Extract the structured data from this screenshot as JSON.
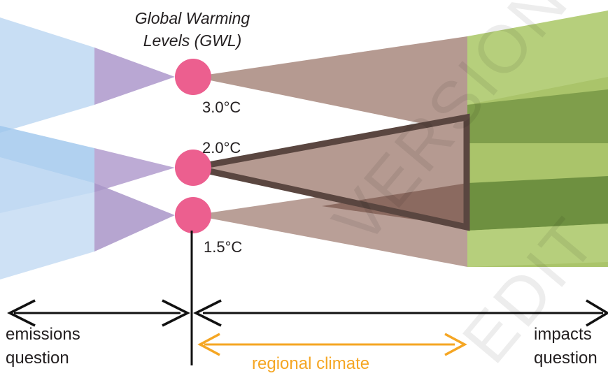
{
  "title_line1": "Global Warming",
  "title_line2": "Levels (GWL)",
  "levels": [
    {
      "label": "3.0°C"
    },
    {
      "label": "2.0°C"
    },
    {
      "label": "1.5°C"
    }
  ],
  "bottom": {
    "left_line1": "emissions",
    "left_line2": "question",
    "middle": "regional climate",
    "right_line1": "impacts",
    "right_line2": "question"
  },
  "watermarks": [
    "VERSION",
    "EDIT"
  ],
  "colors": {
    "emissions_blue": "#c5dcf3",
    "emissions_purple": "#b9a7d3",
    "climate_brown": "#b59a91",
    "impact_light_green": "#aac46a",
    "impact_dark_green": "#7f9e4b",
    "gwl_marker": "#ec5f8f",
    "triangle_outline": "#5a4640",
    "regional_arrow": "#f5a623"
  }
}
